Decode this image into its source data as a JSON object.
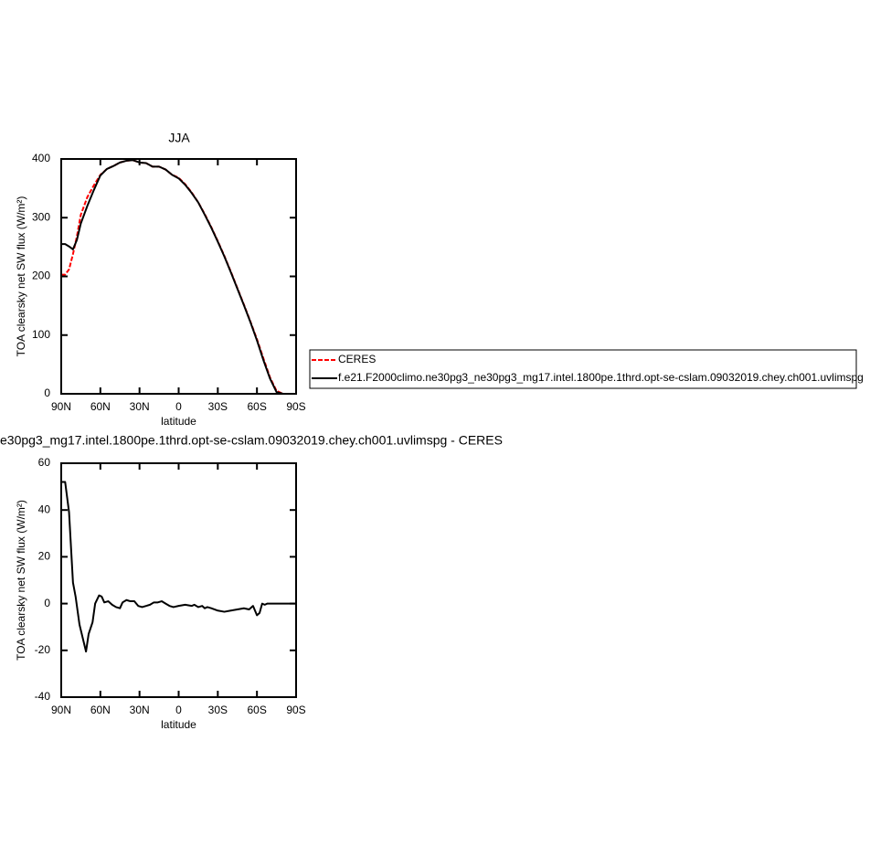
{
  "chart_data": [
    {
      "type": "line",
      "title": "JJA",
      "xlabel": "latitude",
      "ylabel": "TOA clearsky net SW flux (W/m²)",
      "x": [
        90,
        87,
        84,
        81,
        78,
        75,
        70,
        65,
        60,
        55,
        50,
        45,
        40,
        35,
        30,
        25,
        20,
        15,
        10,
        5,
        0,
        -5,
        -10,
        -15,
        -20,
        -25,
        -30,
        -35,
        -40,
        -45,
        -50,
        -55,
        -60,
        -65,
        -70,
        -75,
        -80,
        -85,
        -90
      ],
      "series": [
        {
          "name": "CERES",
          "color": "#ff0000",
          "dash": true,
          "values": [
            203,
            203,
            212,
            238,
            268,
            305,
            335,
            355,
            373,
            383,
            388,
            394,
            397,
            398,
            394,
            393,
            387,
            387,
            382,
            373,
            368,
            357,
            343,
            326,
            306,
            284,
            260,
            235,
            208,
            180,
            152,
            123,
            93,
            60,
            28,
            5,
            0,
            0,
            0
          ]
        },
        {
          "name": "f.e21.F2000climo.ne30pg3_ne30pg3_mg17.intel.1800pe.1thrd.opt-se-cslam.09032019.chey.ch001.uvlimspg",
          "color": "#000000",
          "dash": false,
          "values": [
            255,
            255,
            251,
            246,
            262,
            290,
            320,
            347,
            372,
            383,
            388,
            394,
            397,
            398,
            394,
            393,
            387,
            387,
            382,
            373,
            367,
            356,
            342,
            326,
            305,
            283,
            259,
            234,
            207,
            179,
            151,
            122,
            91,
            57,
            26,
            3,
            0,
            0,
            0
          ]
        }
      ],
      "xlim": [
        90,
        -90
      ],
      "xticks": [
        {
          "value": 90,
          "label": "90N"
        },
        {
          "value": 60,
          "label": "60N"
        },
        {
          "value": 30,
          "label": "30N"
        },
        0,
        {
          "value": -30,
          "label": "30S"
        },
        {
          "value": -60,
          "label": "60S"
        },
        {
          "value": -90,
          "label": "90S"
        }
      ],
      "ylim": [
        0,
        400
      ],
      "yticks": [
        0,
        100,
        200,
        300,
        400
      ]
    },
    {
      "type": "line",
      "title": "e30pg3_mg17.intel.1800pe.1thrd.opt-se-cslam.09032019.chey.ch001.uvlimspg - CERES",
      "xlabel": "latitude",
      "ylabel": "TOA clearsky net SW flux (W/m²)",
      "x": [
        90,
        87,
        84,
        81,
        79,
        76,
        71,
        69,
        66,
        64,
        61,
        59,
        57,
        54,
        51,
        48,
        45,
        43,
        40,
        37,
        34,
        31,
        28,
        25,
        22,
        19,
        16,
        13,
        10,
        7,
        4,
        0,
        -5,
        -10,
        -12,
        -15,
        -18,
        -20,
        -22,
        -25,
        -30,
        -35,
        -40,
        -45,
        -50,
        -54,
        -57,
        -60,
        -62,
        -64,
        -66,
        -68,
        -72,
        -78,
        -84,
        -90
      ],
      "series": [
        {
          "color": "#000000",
          "dash": false,
          "values": [
            52,
            52,
            39,
            9,
            3,
            -9,
            -20.5,
            -13,
            -8,
            0,
            3.5,
            3,
            0.5,
            1,
            -0.5,
            -1.5,
            -2,
            0.5,
            1.5,
            1,
            1,
            -1,
            -1.5,
            -1,
            -0.5,
            0.5,
            0.5,
            1,
            0,
            -1,
            -1.5,
            -1,
            -0.5,
            -1,
            -0.5,
            -1.5,
            -1,
            -2,
            -1.5,
            -2,
            -3,
            -3.5,
            -3,
            -2.5,
            -2,
            -2.5,
            -1,
            -5,
            -4,
            0,
            -0.5,
            0,
            0,
            0,
            0,
            0
          ]
        }
      ],
      "xlim": [
        90,
        -90
      ],
      "xticks": [
        {
          "value": 90,
          "label": "90N"
        },
        {
          "value": 60,
          "label": "60N"
        },
        {
          "value": 30,
          "label": "30N"
        },
        0,
        {
          "value": -30,
          "label": "30S"
        },
        {
          "value": -60,
          "label": "60S"
        },
        {
          "value": -90,
          "label": "90S"
        }
      ],
      "ylim": [
        -40,
        60
      ],
      "yticks": [
        -40,
        -20,
        0,
        20,
        40,
        60
      ]
    }
  ]
}
